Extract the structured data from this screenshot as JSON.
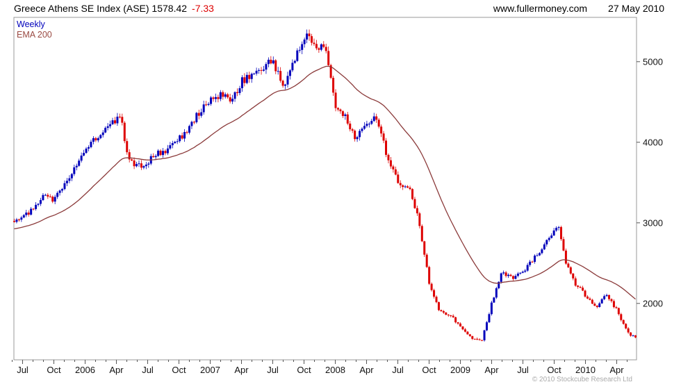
{
  "header": {
    "title": "Greece Athens SE Index (ASE) 1578.42",
    "change": "-7.33",
    "website": "www.fullermoney.com",
    "date": "27 May 2010"
  },
  "legend": {
    "series1": "Weekly",
    "series2": "EMA 200"
  },
  "footer": {
    "copyright": "© 2010 Stockcube Research Ltd"
  },
  "colors": {
    "up_candle": "#0000bb",
    "down_candle": "#dd0000",
    "ema_line": "#8b3a3a",
    "frame": "#999999",
    "tick": "#555555",
    "axis_text": "#111111"
  },
  "chart_data": {
    "type": "candlestick",
    "title": "Greece Athens SE Index (ASE)",
    "frequency": "weekly",
    "last_price": 1578.42,
    "change": -7.33,
    "overlay": "EMA 200",
    "visible_date_range": [
      "Jun 2005",
      "27 May 2010"
    ],
    "y_ticks": [
      2000,
      3000,
      4000,
      5000
    ],
    "y_range": [
      1300,
      5550
    ],
    "x_ticks": [
      {
        "m": 1,
        "label": "Jul"
      },
      {
        "m": 4,
        "label": "Oct"
      },
      {
        "m": 7,
        "label": "2006"
      },
      {
        "m": 10,
        "label": "Apr"
      },
      {
        "m": 13,
        "label": "Jul"
      },
      {
        "m": 16,
        "label": "Oct"
      },
      {
        "m": 19,
        "label": "2007"
      },
      {
        "m": 22,
        "label": "Apr"
      },
      {
        "m": 25,
        "label": "Jul"
      },
      {
        "m": 28,
        "label": "Oct"
      },
      {
        "m": 31,
        "label": "2008"
      },
      {
        "m": 34,
        "label": "Apr"
      },
      {
        "m": 37,
        "label": "Jul"
      },
      {
        "m": 40,
        "label": "Oct"
      },
      {
        "m": 43,
        "label": "2009"
      },
      {
        "m": 46,
        "label": "Apr"
      },
      {
        "m": 49,
        "label": "Jul"
      },
      {
        "m": 52,
        "label": "Oct"
      },
      {
        "m": 55,
        "label": "2010"
      },
      {
        "m": 58,
        "label": "Apr"
      }
    ],
    "month_index_zero": "2005-06",
    "approx_weekly_close_anchors": [
      [
        0,
        2980
      ],
      [
        1,
        3100
      ],
      [
        2,
        3150
      ],
      [
        3,
        3350
      ],
      [
        4,
        3280
      ],
      [
        5,
        3500
      ],
      [
        6,
        3660
      ],
      [
        7,
        3900
      ],
      [
        8,
        4050
      ],
      [
        9,
        4150
      ],
      [
        10,
        4280
      ],
      [
        10.5,
        4320
      ],
      [
        11,
        3850
      ],
      [
        12,
        3690
      ],
      [
        13,
        3750
      ],
      [
        14,
        3870
      ],
      [
        15,
        3920
      ],
      [
        16,
        4050
      ],
      [
        17,
        4180
      ],
      [
        18,
        4390
      ],
      [
        19,
        4500
      ],
      [
        20,
        4600
      ],
      [
        21,
        4520
      ],
      [
        22,
        4750
      ],
      [
        23,
        4850
      ],
      [
        24,
        4900
      ],
      [
        25,
        5020
      ],
      [
        26,
        4700
      ],
      [
        27,
        5000
      ],
      [
        28,
        5300
      ],
      [
        28.5,
        5340
      ],
      [
        29,
        5150
      ],
      [
        30,
        5250
      ],
      [
        31,
        4450
      ],
      [
        32,
        4300
      ],
      [
        33,
        4050
      ],
      [
        34,
        4250
      ],
      [
        35,
        4300
      ],
      [
        36,
        3820
      ],
      [
        37,
        3500
      ],
      [
        38,
        3450
      ],
      [
        39,
        3050
      ],
      [
        40,
        2250
      ],
      [
        41,
        1900
      ],
      [
        42,
        1850
      ],
      [
        43,
        1730
      ],
      [
        44,
        1580
      ],
      [
        45,
        1520
      ],
      [
        46,
        2000
      ],
      [
        47,
        2400
      ],
      [
        48,
        2300
      ],
      [
        49,
        2400
      ],
      [
        50,
        2550
      ],
      [
        51,
        2700
      ],
      [
        52,
        2900
      ],
      [
        52.5,
        2930
      ],
      [
        53,
        2550
      ],
      [
        54,
        2250
      ],
      [
        55,
        2100
      ],
      [
        56,
        1950
      ],
      [
        57,
        2100
      ],
      [
        58,
        1920
      ],
      [
        59,
        1640
      ],
      [
        59.8,
        1578.42
      ]
    ]
  }
}
